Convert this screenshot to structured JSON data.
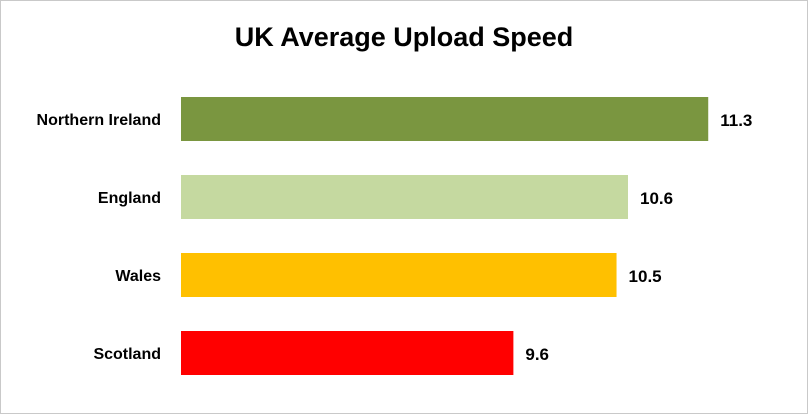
{
  "chart_data": {
    "type": "bar",
    "orientation": "horizontal",
    "title": "UK Average Upload Speed",
    "xlabel": "",
    "ylabel": "",
    "categories": [
      "Northern Ireland",
      "England",
      "Wales",
      "Scotland"
    ],
    "values": [
      11.3,
      10.6,
      10.5,
      9.6
    ],
    "value_labels": [
      "11.3",
      "10.6",
      "10.5",
      "9.6"
    ],
    "colors": [
      "#7a9640",
      "#c5d9a0",
      "#ffc000",
      "#ff0000"
    ],
    "xlim": [
      6.7,
      11.9
    ],
    "grid": false,
    "legend": "none"
  }
}
